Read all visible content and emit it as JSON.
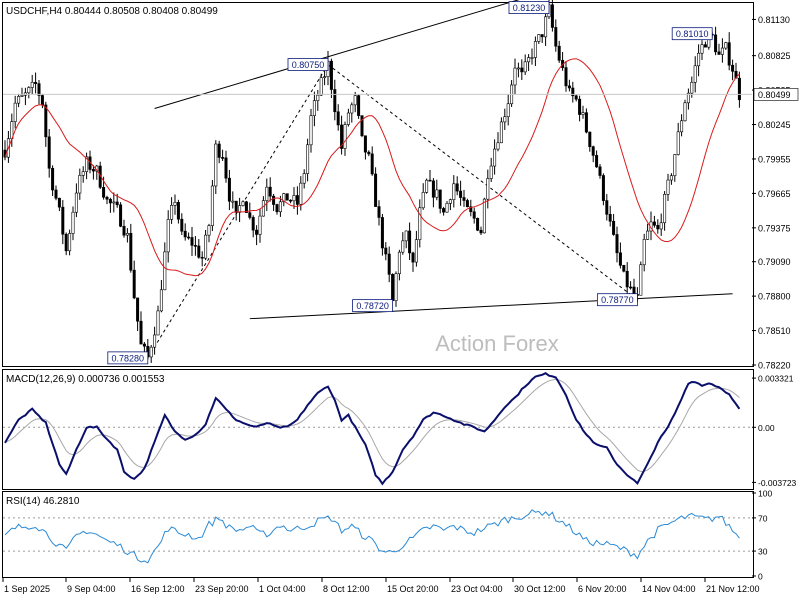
{
  "chart_data": {
    "type": "line",
    "symbol_header": "USDCHF,H4  0.80444 0.80508 0.80408 0.80499",
    "watermark": "Action Forex",
    "price_panel": {
      "ylim": [
        0.7822,
        0.8126
      ],
      "y_ticks": [
        "0.81130",
        "0.80825",
        "0.80535",
        "0.80245",
        "0.79955",
        "0.79665",
        "0.79375",
        "0.79090",
        "0.78800",
        "0.78510",
        "0.78220"
      ],
      "current_price_label": "0.80499",
      "current_price": 0.80499,
      "annotations": [
        {
          "text": "0.78280",
          "bar": 42,
          "price": 0.7828
        },
        {
          "text": "0.80750",
          "bar": 95,
          "price": 0.8075
        },
        {
          "text": "0.78720",
          "bar": 114,
          "price": 0.7872
        },
        {
          "text": "0.81230",
          "bar": 160,
          "price": 0.8123
        },
        {
          "text": "0.78770",
          "bar": 186,
          "price": 0.7877
        },
        {
          "text": "0.81010",
          "bar": 208,
          "price": 0.8101
        }
      ],
      "trendlines": [
        {
          "style": "solid",
          "from": {
            "bar": 44,
            "price": 0.8038
          },
          "to": {
            "bar": 182,
            "price": 0.8156
          }
        },
        {
          "style": "solid",
          "from": {
            "bar": 72,
            "price": 0.7861
          },
          "to": {
            "bar": 214,
            "price": 0.7882
          }
        },
        {
          "style": "dashed",
          "from": {
            "bar": 42,
            "price": 0.7828
          },
          "to": {
            "bar": 95,
            "price": 0.8075
          }
        },
        {
          "style": "dashed",
          "from": {
            "bar": 95,
            "price": 0.8075
          },
          "to": {
            "bar": 186,
            "price": 0.7877
          }
        }
      ],
      "price_keypoints": [
        [
          0,
          0.8003
        ],
        [
          3,
          0.8042
        ],
        [
          6,
          0.8049
        ],
        [
          9,
          0.8058
        ],
        [
          11,
          0.8043
        ],
        [
          13,
          0.7987
        ],
        [
          16,
          0.795
        ],
        [
          18,
          0.7918
        ],
        [
          21,
          0.797
        ],
        [
          24,
          0.7992
        ],
        [
          27,
          0.7985
        ],
        [
          30,
          0.796
        ],
        [
          33,
          0.7952
        ],
        [
          36,
          0.793
        ],
        [
          38,
          0.788
        ],
        [
          40,
          0.7838
        ],
        [
          42,
          0.7828
        ],
        [
          45,
          0.7865
        ],
        [
          48,
          0.794
        ],
        [
          50,
          0.7962
        ],
        [
          52,
          0.793
        ],
        [
          55,
          0.7925
        ],
        [
          58,
          0.7912
        ],
        [
          60,
          0.794
        ],
        [
          62,
          0.8005
        ],
        [
          64,
          0.8
        ],
        [
          66,
          0.7965
        ],
        [
          68,
          0.7945
        ],
        [
          70,
          0.7965
        ],
        [
          72,
          0.7945
        ],
        [
          74,
          0.7935
        ],
        [
          77,
          0.7975
        ],
        [
          80,
          0.7955
        ],
        [
          83,
          0.7963
        ],
        [
          86,
          0.7958
        ],
        [
          88,
          0.7985
        ],
        [
          90,
          0.803
        ],
        [
          92,
          0.805
        ],
        [
          95,
          0.8075
        ],
        [
          97,
          0.804
        ],
        [
          99,
          0.8005
        ],
        [
          101,
          0.8035
        ],
        [
          103,
          0.8045
        ],
        [
          105,
          0.801
        ],
        [
          107,
          0.7995
        ],
        [
          109,
          0.796
        ],
        [
          111,
          0.7925
        ],
        [
          113,
          0.7895
        ],
        [
          114,
          0.7875
        ],
        [
          116,
          0.792
        ],
        [
          118,
          0.793
        ],
        [
          120,
          0.7905
        ],
        [
          122,
          0.795
        ],
        [
          124,
          0.7975
        ],
        [
          127,
          0.7965
        ],
        [
          129,
          0.795
        ],
        [
          132,
          0.7975
        ],
        [
          135,
          0.7955
        ],
        [
          138,
          0.7945
        ],
        [
          140,
          0.7935
        ],
        [
          142,
          0.7985
        ],
        [
          145,
          0.8015
        ],
        [
          148,
          0.8045
        ],
        [
          150,
          0.8075
        ],
        [
          152,
          0.8065
        ],
        [
          155,
          0.8085
        ],
        [
          158,
          0.8102
        ],
        [
          160,
          0.8121
        ],
        [
          162,
          0.809
        ],
        [
          164,
          0.807
        ],
        [
          166,
          0.805
        ],
        [
          168,
          0.8045
        ],
        [
          170,
          0.803
        ],
        [
          172,
          0.801
        ],
        [
          174,
          0.799
        ],
        [
          176,
          0.7965
        ],
        [
          178,
          0.794
        ],
        [
          180,
          0.7915
        ],
        [
          182,
          0.7895
        ],
        [
          184,
          0.7885
        ],
        [
          186,
          0.7877
        ],
        [
          188,
          0.7925
        ],
        [
          190,
          0.794
        ],
        [
          192,
          0.7935
        ],
        [
          194,
          0.796
        ],
        [
          196,
          0.7985
        ],
        [
          198,
          0.8015
        ],
        [
          200,
          0.8045
        ],
        [
          202,
          0.806
        ],
        [
          204,
          0.8085
        ],
        [
          206,
          0.8095
        ],
        [
          208,
          0.8098
        ],
        [
          210,
          0.8082
        ],
        [
          212,
          0.8088
        ],
        [
          214,
          0.8072
        ],
        [
          216,
          0.805
        ]
      ]
    },
    "macd_panel": {
      "header": "MACD(12,26,9) 0.000736 0.001553",
      "ylim": [
        -0.0041,
        0.0038
      ],
      "y_ticks": [
        "0.003321",
        "0.00",
        "-0.003723"
      ],
      "keypoints": [
        [
          0,
          -0.001
        ],
        [
          4,
          0.0005
        ],
        [
          8,
          0.0012
        ],
        [
          12,
          0.0003
        ],
        [
          16,
          -0.0025
        ],
        [
          18,
          -0.0032
        ],
        [
          21,
          -0.0015
        ],
        [
          24,
          0.0
        ],
        [
          27,
          0.0
        ],
        [
          30,
          -0.0008
        ],
        [
          33,
          -0.0015
        ],
        [
          35,
          -0.003
        ],
        [
          38,
          -0.0035
        ],
        [
          41,
          -0.0028
        ],
        [
          44,
          -0.001
        ],
        [
          47,
          0.0008
        ],
        [
          50,
          -0.0003
        ],
        [
          53,
          -0.0008
        ],
        [
          56,
          -0.0005
        ],
        [
          59,
          0.0002
        ],
        [
          62,
          0.002
        ],
        [
          65,
          0.0012
        ],
        [
          68,
          0.0005
        ],
        [
          71,
          0.0002
        ],
        [
          74,
          0.0
        ],
        [
          77,
          0.0003
        ],
        [
          80,
          0.0
        ],
        [
          83,
          0.0
        ],
        [
          86,
          0.0005
        ],
        [
          89,
          0.0015
        ],
        [
          92,
          0.0023
        ],
        [
          95,
          0.0028
        ],
        [
          97,
          0.0018
        ],
        [
          99,
          0.0005
        ],
        [
          101,
          0.0008
        ],
        [
          103,
          0.0
        ],
        [
          106,
          -0.0012
        ],
        [
          109,
          -0.0032
        ],
        [
          111,
          -0.0038
        ],
        [
          114,
          -0.003
        ],
        [
          117,
          -0.0015
        ],
        [
          120,
          -0.0006
        ],
        [
          123,
          0.0005
        ],
        [
          126,
          0.001
        ],
        [
          129,
          0.0008
        ],
        [
          132,
          0.0005
        ],
        [
          135,
          0.0002
        ],
        [
          138,
          0.0
        ],
        [
          141,
          -0.0003
        ],
        [
          144,
          0.0005
        ],
        [
          147,
          0.0014
        ],
        [
          150,
          0.002
        ],
        [
          153,
          0.0028
        ],
        [
          156,
          0.0034
        ],
        [
          159,
          0.0036
        ],
        [
          162,
          0.0034
        ],
        [
          165,
          0.0022
        ],
        [
          168,
          0.0005
        ],
        [
          171,
          -0.0005
        ],
        [
          174,
          -0.0012
        ],
        [
          177,
          -0.0014
        ],
        [
          180,
          -0.0025
        ],
        [
          183,
          -0.0032
        ],
        [
          186,
          -0.0038
        ],
        [
          189,
          -0.0025
        ],
        [
          192,
          -0.001
        ],
        [
          195,
          0.0
        ],
        [
          198,
          0.0014
        ],
        [
          201,
          0.003
        ],
        [
          203,
          0.0031
        ],
        [
          205,
          0.0028
        ],
        [
          207,
          0.003
        ],
        [
          209,
          0.0028
        ],
        [
          211,
          0.0026
        ],
        [
          213,
          0.0022
        ],
        [
          216,
          0.0012
        ]
      ]
    },
    "rsi_panel": {
      "header": "RSI(14) 46.2810",
      "ylim": [
        0,
        100
      ],
      "y_ticks": [
        100,
        70,
        30,
        0
      ],
      "keypoints": [
        [
          0,
          48
        ],
        [
          3,
          58
        ],
        [
          6,
          60
        ],
        [
          9,
          62
        ],
        [
          12,
          52
        ],
        [
          15,
          40
        ],
        [
          18,
          30
        ],
        [
          21,
          48
        ],
        [
          24,
          55
        ],
        [
          27,
          50
        ],
        [
          30,
          42
        ],
        [
          33,
          38
        ],
        [
          36,
          30
        ],
        [
          39,
          22
        ],
        [
          42,
          20
        ],
        [
          45,
          35
        ],
        [
          48,
          58
        ],
        [
          51,
          52
        ],
        [
          54,
          50
        ],
        [
          57,
          45
        ],
        [
          60,
          62
        ],
        [
          63,
          70
        ],
        [
          66,
          58
        ],
        [
          69,
          55
        ],
        [
          72,
          60
        ],
        [
          75,
          50
        ],
        [
          78,
          52
        ],
        [
          81,
          62
        ],
        [
          84,
          55
        ],
        [
          87,
          58
        ],
        [
          90,
          62
        ],
        [
          93,
          68
        ],
        [
          96,
          70
        ],
        [
          99,
          55
        ],
        [
          102,
          60
        ],
        [
          105,
          50
        ],
        [
          108,
          42
        ],
        [
          111,
          30
        ],
        [
          114,
          28
        ],
        [
          117,
          38
        ],
        [
          120,
          45
        ],
        [
          123,
          55
        ],
        [
          126,
          60
        ],
        [
          129,
          55
        ],
        [
          132,
          60
        ],
        [
          135,
          55
        ],
        [
          138,
          52
        ],
        [
          141,
          58
        ],
        [
          144,
          62
        ],
        [
          147,
          68
        ],
        [
          150,
          70
        ],
        [
          153,
          74
        ],
        [
          156,
          76
        ],
        [
          159,
          78
        ],
        [
          162,
          70
        ],
        [
          165,
          62
        ],
        [
          168,
          52
        ],
        [
          171,
          42
        ],
        [
          174,
          40
        ],
        [
          177,
          38
        ],
        [
          180,
          35
        ],
        [
          183,
          30
        ],
        [
          186,
          25
        ],
        [
          189,
          42
        ],
        [
          192,
          55
        ],
        [
          195,
          62
        ],
        [
          198,
          68
        ],
        [
          201,
          72
        ],
        [
          204,
          70
        ],
        [
          207,
          68
        ],
        [
          210,
          72
        ],
        [
          213,
          60
        ],
        [
          216,
          46
        ]
      ]
    },
    "time_axis": {
      "labels": [
        "1 Sep 2025",
        "9 Sep 04:00",
        "16 Sep 12:00",
        "23 Sep 20:00",
        "1 Oct 04:00",
        "8 Oct 12:00",
        "15 Oct 20:00",
        "23 Oct 04:00",
        "30 Oct 12:00",
        "6 Nov 20:00",
        "14 Nov 04:00",
        "21 Nov 12:00"
      ],
      "label_bars": [
        0,
        22,
        44,
        66,
        88,
        110,
        132,
        154,
        176,
        198,
        220,
        242
      ]
    },
    "colors": {
      "candle": "#000000",
      "ma": "#d81b1b",
      "macd": "#0a0f6b",
      "signal": "#a8a8a8",
      "rsi": "#2a8ad6",
      "label_text": "#0a1a7a",
      "label_border": "#0a1a7a",
      "label_fill": "#ffffff",
      "watermark": "#bdbdbd"
    }
  }
}
